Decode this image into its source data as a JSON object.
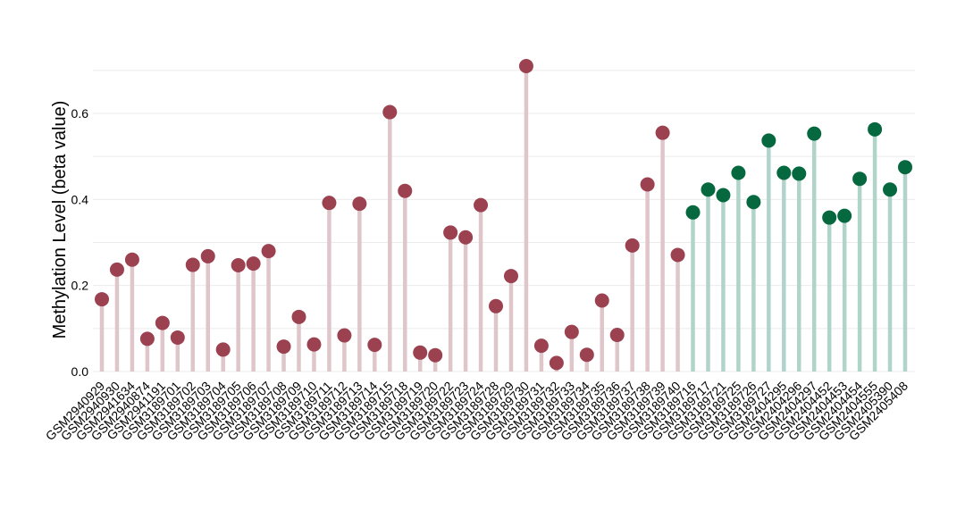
{
  "chart_data": {
    "type": "lollipop",
    "title": "",
    "xlabel": "",
    "ylabel": "Methylation Level (beta value)",
    "ylim": [
      0,
      0.7
    ],
    "yticks": [
      0.0,
      0.2,
      0.4,
      0.6
    ],
    "ytick_labels": [
      "0.0",
      "0.2",
      "0.4",
      "0.6"
    ],
    "grid": true,
    "legend": "none",
    "colors": {
      "group_a_point": "#9B4150",
      "group_a_stem": "#DFC6CB",
      "group_b_point": "#05683F",
      "group_b_stem": "#B1D4CA",
      "grid": "#EBEBEB"
    },
    "categories": [
      "GSM2940929",
      "GSM2940930",
      "GSM2941634",
      "GSM2940874",
      "GSM2941191",
      "GSM3189701",
      "GSM3189702",
      "GSM3189703",
      "GSM3189704",
      "GSM3189705",
      "GSM3189706",
      "GSM3189707",
      "GSM3189708",
      "GSM3189709",
      "GSM3189710",
      "GSM3189711",
      "GSM3189712",
      "GSM3189713",
      "GSM3189714",
      "GSM3189715",
      "GSM3189718",
      "GSM3189719",
      "GSM3189720",
      "GSM3189722",
      "GSM3189723",
      "GSM3189724",
      "GSM3189728",
      "GSM3189729",
      "GSM3189730",
      "GSM3189731",
      "GSM3189732",
      "GSM3189733",
      "GSM3189734",
      "GSM3189735",
      "GSM3189736",
      "GSM3189737",
      "GSM3189738",
      "GSM3189739",
      "GSM3189740",
      "GSM3189716",
      "GSM3189717",
      "GSM3189721",
      "GSM3189725",
      "GSM3189726",
      "GSM3189727",
      "GSM2404295",
      "GSM2404296",
      "GSM2404297",
      "GSM2404452",
      "GSM2404453",
      "GSM2404454",
      "GSM2404555",
      "GSM2405390",
      "GSM2405408"
    ],
    "values": [
      0.168,
      0.237,
      0.26,
      0.076,
      0.113,
      0.079,
      0.248,
      0.268,
      0.051,
      0.247,
      0.251,
      0.28,
      0.058,
      0.127,
      0.063,
      0.392,
      0.084,
      0.39,
      0.062,
      0.603,
      0.42,
      0.044,
      0.038,
      0.323,
      0.312,
      0.387,
      0.152,
      0.222,
      0.71,
      0.06,
      0.02,
      0.092,
      0.039,
      0.165,
      0.085,
      0.293,
      0.435,
      0.555,
      0.271,
      0.37,
      0.423,
      0.41,
      0.462,
      0.394,
      0.537,
      0.462,
      0.46,
      0.553,
      0.358,
      0.362,
      0.448,
      0.563,
      0.423,
      0.475
    ],
    "groups": [
      "a",
      "a",
      "a",
      "a",
      "a",
      "a",
      "a",
      "a",
      "a",
      "a",
      "a",
      "a",
      "a",
      "a",
      "a",
      "a",
      "a",
      "a",
      "a",
      "a",
      "a",
      "a",
      "a",
      "a",
      "a",
      "a",
      "a",
      "a",
      "a",
      "a",
      "a",
      "a",
      "a",
      "a",
      "a",
      "a",
      "a",
      "a",
      "a",
      "b",
      "b",
      "b",
      "b",
      "b",
      "b",
      "b",
      "b",
      "b",
      "b",
      "b",
      "b",
      "b",
      "b",
      "b"
    ]
  }
}
